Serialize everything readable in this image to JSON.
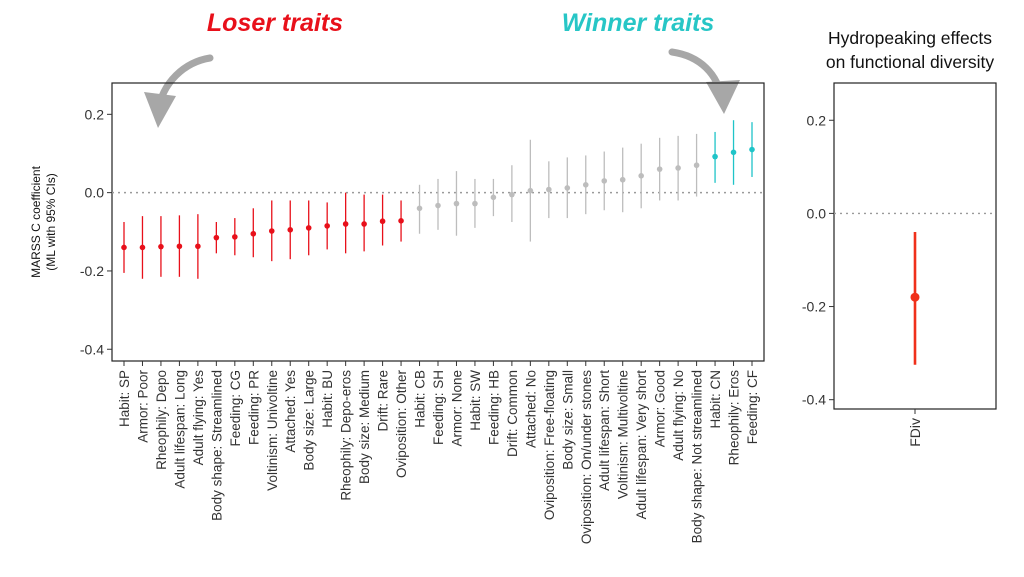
{
  "headers": {
    "loser": "Loser traits",
    "winner": "Winner traits",
    "fd_title_line1": "Hydropeaking effects",
    "fd_title_line2": "on functional diversity"
  },
  "colors": {
    "loser": "#e8101a",
    "winner": "#1fc4c8",
    "neutral": "#bdbdbd",
    "fdiv": "#f0301a",
    "arrow": "#a7a7a7"
  },
  "chart_data": [
    {
      "type": "scatter",
      "style": "point-range",
      "title": "",
      "ylabel_line1": "MARSS C coefficient",
      "ylabel_line2": "(ML with 95% CIs)",
      "xlabel": "",
      "ylim": [
        -0.43,
        0.28
      ],
      "yticks": [
        0.2,
        0.0,
        -0.2,
        -0.4
      ],
      "ytick_labels": [
        "0.2",
        "0.0",
        "-0.2",
        "-0.4"
      ],
      "reference_line": 0,
      "grid": false,
      "points": [
        {
          "label": "Habit: SP",
          "value": -0.14,
          "lower": -0.205,
          "upper": -0.075,
          "group": "loser"
        },
        {
          "label": "Armor: Poor",
          "value": -0.14,
          "lower": -0.22,
          "upper": -0.06,
          "group": "loser"
        },
        {
          "label": "Rheophily: Depo",
          "value": -0.138,
          "lower": -0.215,
          "upper": -0.06,
          "group": "loser"
        },
        {
          "label": "Adult lifespan: Long",
          "value": -0.137,
          "lower": -0.215,
          "upper": -0.058,
          "group": "loser"
        },
        {
          "label": "Adult flying: Yes",
          "value": -0.137,
          "lower": -0.22,
          "upper": -0.055,
          "group": "loser"
        },
        {
          "label": "Body shape: Streamlined",
          "value": -0.115,
          "lower": -0.155,
          "upper": -0.075,
          "group": "loser"
        },
        {
          "label": "Feeding: CG",
          "value": -0.113,
          "lower": -0.16,
          "upper": -0.065,
          "group": "loser"
        },
        {
          "label": "Feeding: PR",
          "value": -0.105,
          "lower": -0.165,
          "upper": -0.04,
          "group": "loser"
        },
        {
          "label": "Voltinism: Univoltine",
          "value": -0.098,
          "lower": -0.175,
          "upper": -0.02,
          "group": "loser"
        },
        {
          "label": "Attached: Yes",
          "value": -0.095,
          "lower": -0.17,
          "upper": -0.02,
          "group": "loser"
        },
        {
          "label": "Body size: Large",
          "value": -0.09,
          "lower": -0.16,
          "upper": -0.02,
          "group": "loser"
        },
        {
          "label": "Habit: BU",
          "value": -0.085,
          "lower": -0.145,
          "upper": -0.025,
          "group": "loser"
        },
        {
          "label": "Rheophily: Depo-eros",
          "value": -0.08,
          "lower": -0.155,
          "upper": 0.0,
          "group": "loser"
        },
        {
          "label": "Body size: Medium",
          "value": -0.08,
          "lower": -0.15,
          "upper": -0.005,
          "group": "loser"
        },
        {
          "label": "Drift: Rare",
          "value": -0.073,
          "lower": -0.135,
          "upper": -0.005,
          "group": "loser"
        },
        {
          "label": "Oviposition: Other",
          "value": -0.072,
          "lower": -0.125,
          "upper": -0.02,
          "group": "loser"
        },
        {
          "label": "Habit: CB",
          "value": -0.04,
          "lower": -0.105,
          "upper": 0.02,
          "group": "neutral"
        },
        {
          "label": "Feeding: SH",
          "value": -0.033,
          "lower": -0.095,
          "upper": 0.035,
          "group": "neutral"
        },
        {
          "label": "Armor: None",
          "value": -0.028,
          "lower": -0.11,
          "upper": 0.055,
          "group": "neutral"
        },
        {
          "label": "Habit: SW",
          "value": -0.028,
          "lower": -0.09,
          "upper": 0.035,
          "group": "neutral"
        },
        {
          "label": "Feeding: HB",
          "value": -0.012,
          "lower": -0.06,
          "upper": 0.035,
          "group": "neutral"
        },
        {
          "label": "Drift: Common",
          "value": -0.005,
          "lower": -0.075,
          "upper": 0.07,
          "group": "neutral"
        },
        {
          "label": "Attached: No",
          "value": 0.005,
          "lower": -0.125,
          "upper": 0.135,
          "group": "neutral"
        },
        {
          "label": "Oviposition: Free-floating",
          "value": 0.008,
          "lower": -0.065,
          "upper": 0.08,
          "group": "neutral"
        },
        {
          "label": "Body size: Small",
          "value": 0.012,
          "lower": -0.065,
          "upper": 0.09,
          "group": "neutral"
        },
        {
          "label": "Oviposition: On/under stones",
          "value": 0.02,
          "lower": -0.055,
          "upper": 0.095,
          "group": "neutral"
        },
        {
          "label": "Adult lifespan: Short",
          "value": 0.03,
          "lower": -0.045,
          "upper": 0.105,
          "group": "neutral"
        },
        {
          "label": "Voltinism: Multivoltine",
          "value": 0.033,
          "lower": -0.05,
          "upper": 0.115,
          "group": "neutral"
        },
        {
          "label": "Adult lifespan: Very short",
          "value": 0.043,
          "lower": -0.04,
          "upper": 0.125,
          "group": "neutral"
        },
        {
          "label": "Armor: Good",
          "value": 0.06,
          "lower": -0.02,
          "upper": 0.14,
          "group": "neutral"
        },
        {
          "label": "Adult flying: No",
          "value": 0.063,
          "lower": -0.02,
          "upper": 0.145,
          "group": "neutral"
        },
        {
          "label": "Body shape: Not streamlined",
          "value": 0.07,
          "lower": -0.01,
          "upper": 0.15,
          "group": "neutral"
        },
        {
          "label": "Habit: CN",
          "value": 0.092,
          "lower": 0.025,
          "upper": 0.155,
          "group": "winner"
        },
        {
          "label": "Rheophily: Eros",
          "value": 0.103,
          "lower": 0.02,
          "upper": 0.185,
          "group": "winner"
        },
        {
          "label": "Feeding: CF",
          "value": 0.11,
          "lower": 0.04,
          "upper": 0.18,
          "group": "winner"
        }
      ]
    },
    {
      "type": "scatter",
      "style": "point-range",
      "title": "Hydropeaking effects on functional diversity",
      "xlabel": "",
      "ylabel": "",
      "ylim": [
        -0.42,
        0.28
      ],
      "yticks": [
        0.2,
        0.0,
        -0.2,
        -0.4
      ],
      "ytick_labels": [
        "0.2",
        "0.0",
        "-0.2",
        "-0.4"
      ],
      "reference_line": 0,
      "grid": false,
      "points": [
        {
          "label": "FDiv",
          "value": -0.18,
          "lower": -0.325,
          "upper": -0.04,
          "group": "fdiv"
        }
      ]
    }
  ]
}
